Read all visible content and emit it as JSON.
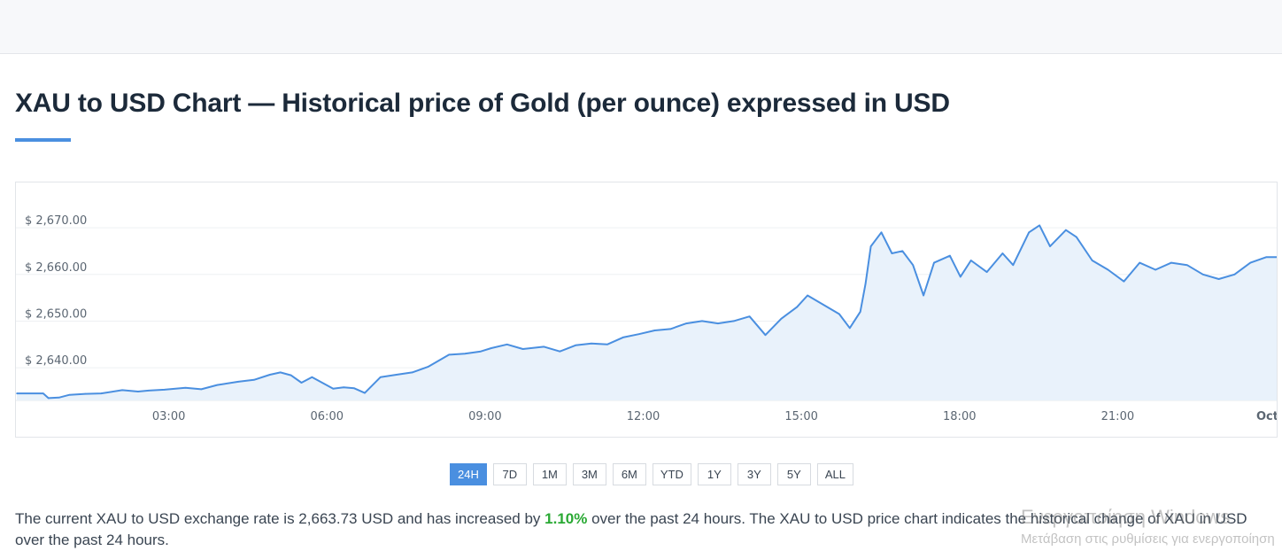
{
  "page": {
    "title": "XAU to USD Chart — Historical price of Gold (per ounce) expressed in USD"
  },
  "ranges": {
    "buttons": [
      "24H",
      "7D",
      "1M",
      "3M",
      "6M",
      "YTD",
      "1Y",
      "3Y",
      "5Y",
      "ALL"
    ],
    "active": "24H"
  },
  "description": {
    "part1": "The current XAU to USD exchange rate is 2,663.73 USD and has increased by ",
    "pct": "1.10%",
    "part2": " over the past 24 hours. The XAU to USD price chart indicates the historical change of XAU in USD over the past 24 hours."
  },
  "watermark": {
    "line1": "Ενεργοποίηση Windows",
    "line2": "Μετάβαση στις ρυθμίσεις για ενεργοποίηση"
  },
  "colors": {
    "line": "#4a8fe0",
    "fill": "#e9f2fb",
    "accent": "#4a8fe0",
    "positive": "#2aa934"
  },
  "chart_data": {
    "type": "area",
    "title": "",
    "xlabel": "",
    "ylabel": "",
    "ylim": [
      2633,
      2674
    ],
    "xlim": [
      0,
      24
    ],
    "grid": true,
    "y_ticks": [
      2640,
      2650,
      2660,
      2670
    ],
    "y_tick_labels": [
      "$ 2,640.00",
      "$ 2,650.00",
      "$ 2,660.00",
      "$ 2,670.00"
    ],
    "x_ticks": [
      3,
      6,
      9,
      12,
      15,
      18,
      21,
      24
    ],
    "x_tick_labels": [
      "03:00",
      "06:00",
      "09:00",
      "12:00",
      "15:00",
      "18:00",
      "21:00",
      "Oct"
    ],
    "series": [
      {
        "x": [
          0,
          0.5,
          0.6,
          0.8,
          1.0,
          1.3,
          1.6,
          2.0,
          2.3,
          2.5,
          2.8,
          3.2,
          3.5,
          3.8,
          4.2,
          4.5,
          4.8,
          5.0,
          5.2,
          5.4,
          5.6,
          6.0,
          6.2,
          6.4,
          6.6,
          6.9,
          7.2,
          7.5,
          7.8,
          8.0,
          8.2,
          8.5,
          8.8,
          9.0,
          9.3,
          9.6,
          10.0,
          10.3,
          10.6,
          10.9,
          11.2,
          11.5,
          11.8,
          12.1,
          12.4,
          12.7,
          13.0,
          13.3,
          13.6,
          13.9,
          14.2,
          14.5,
          14.8,
          15.0,
          15.3,
          15.6,
          15.8,
          16.0,
          16.1,
          16.2,
          16.4,
          16.6,
          16.8,
          17.0,
          17.2,
          17.4,
          17.7,
          17.9,
          18.1,
          18.4,
          18.7,
          18.9,
          19.2,
          19.4,
          19.6,
          19.9,
          20.1,
          20.4,
          20.7,
          21.0,
          21.3,
          21.6,
          21.9,
          22.2,
          22.5,
          22.8,
          23.1,
          23.4,
          23.7,
          24.0
        ],
        "values": [
          2634.5,
          2634.5,
          2633.5,
          2633.6,
          2634.2,
          2634.4,
          2634.5,
          2635.2,
          2634.9,
          2635.1,
          2635.3,
          2635.7,
          2635.4,
          2636.3,
          2637.0,
          2637.4,
          2638.5,
          2639.0,
          2638.4,
          2636.8,
          2638.0,
          2635.5,
          2635.8,
          2635.6,
          2634.6,
          2638.0,
          2638.5,
          2639.0,
          2640.2,
          2641.5,
          2642.8,
          2643.0,
          2643.5,
          2644.2,
          2645.0,
          2644.0,
          2644.5,
          2643.5,
          2644.8,
          2645.2,
          2645.0,
          2646.5,
          2647.2,
          2648.0,
          2648.3,
          2649.5,
          2650.0,
          2649.5,
          2650.0,
          2651.0,
          2647.0,
          2650.5,
          2653.0,
          2655.5,
          2653.5,
          2651.5,
          2648.5,
          2652.0,
          2658.0,
          2666.0,
          2669.0,
          2664.5,
          2665.0,
          2662.0,
          2655.5,
          2662.5,
          2664.0,
          2659.5,
          2663.0,
          2660.5,
          2664.5,
          2662.0,
          2669.0,
          2670.5,
          2666.0,
          2669.5,
          2668.0,
          2663.0,
          2661.0,
          2658.5,
          2662.5,
          2661.0,
          2662.5,
          2662.0,
          2660.0,
          2659.0,
          2660.0,
          2662.5,
          2663.7,
          2663.7
        ]
      }
    ]
  }
}
